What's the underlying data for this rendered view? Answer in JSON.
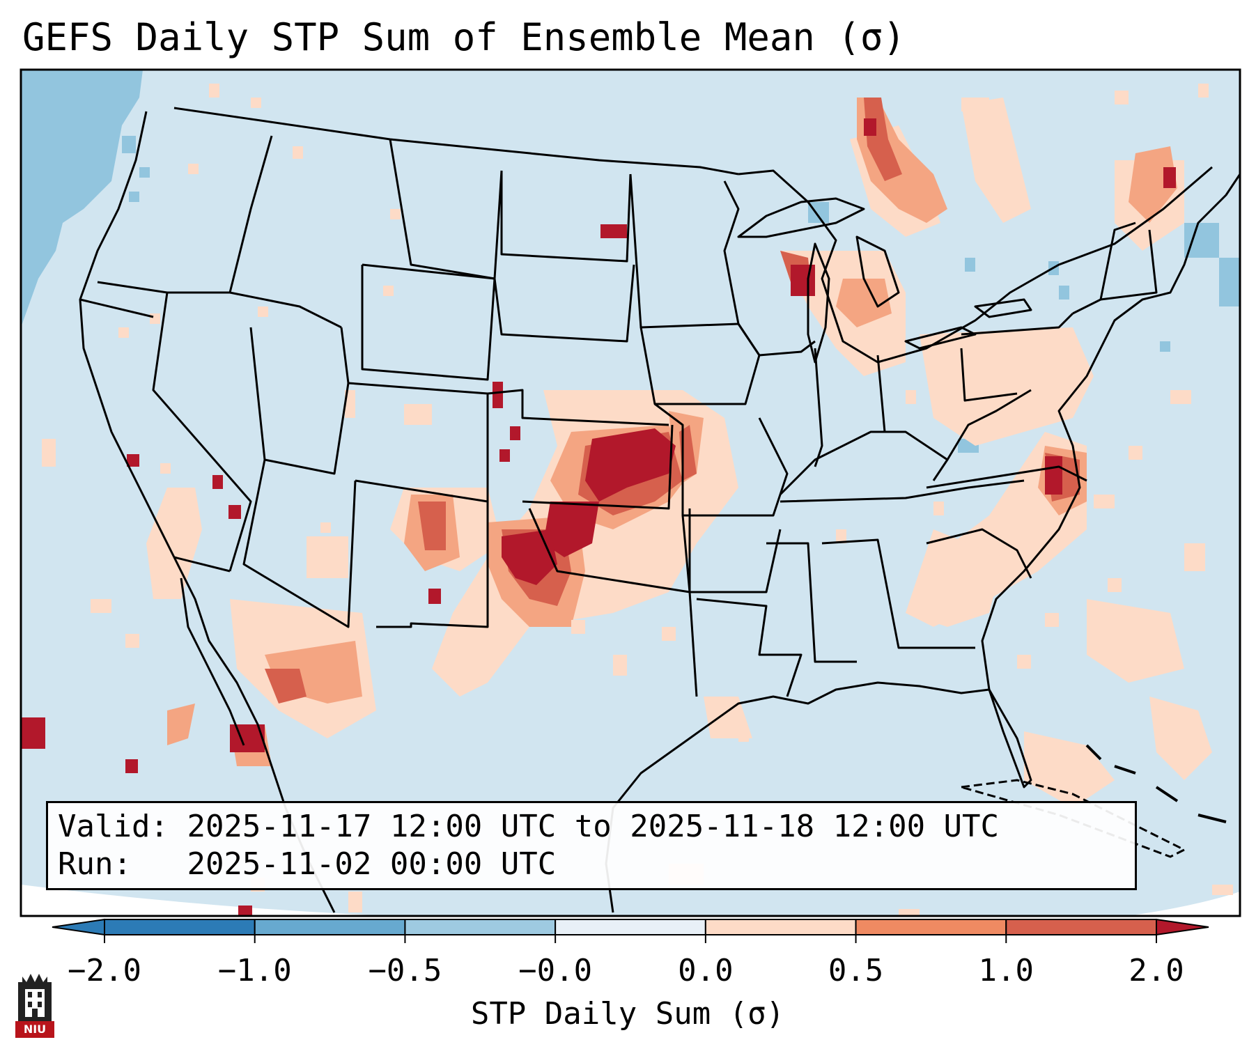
{
  "title": "GEFS Daily STP Sum of Ensemble Mean (σ)",
  "info": {
    "valid_label": "Valid:",
    "valid_value": "2025-11-17 12:00 UTC to 2025-11-18 12:00 UTC",
    "run_label": "Run:",
    "run_value": "2025-11-02 00:00 UTC"
  },
  "colorbar": {
    "label": "STP Daily Sum (σ)",
    "ticks": [
      "−2.0",
      "−1.0",
      "−0.5",
      "−0.0",
      "0.0",
      "0.5",
      "1.0",
      "2.0"
    ],
    "colors": [
      "#2c7bb6",
      "#67a9cf",
      "#9ecae1",
      "#e8f0f7",
      "#fddbc7",
      "#ef8a62",
      "#d6604d",
      "#b2182b"
    ],
    "extend": "both"
  },
  "map": {
    "background_color": "#d1e5f0",
    "strong_negative_color": "#92c5de",
    "weak_positive_color": "#fddbc7",
    "moderate_positive_color": "#f4a582",
    "high_positive_color": "#d6604d",
    "extreme_positive_color": "#b2182b"
  },
  "logo": {
    "text": "NIU"
  }
}
